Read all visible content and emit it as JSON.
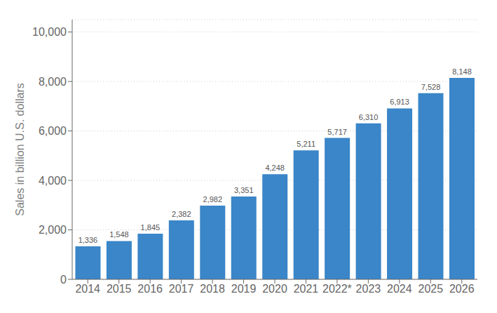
{
  "chart_data": {
    "type": "bar",
    "categories": [
      "2014",
      "2015",
      "2016",
      "2017",
      "2018",
      "2019",
      "2020",
      "2021",
      "2022*",
      "2023",
      "2024",
      "2025",
      "2026"
    ],
    "values": [
      1336,
      1548,
      1845,
      2382,
      2982,
      3351,
      4248,
      5211,
      5717,
      6310,
      6913,
      7528,
      8148
    ],
    "value_labels": [
      "1,336",
      "1,548",
      "1,845",
      "2,382",
      "2,982",
      "3,351",
      "4,248",
      "5,211",
      "5,717",
      "6,310",
      "6,913",
      "7,528",
      "8,148"
    ],
    "data_labels": true,
    "color": "#3a86c8",
    "ylabel": "Sales in billion U.S. dollars",
    "ylim": [
      0,
      10500
    ],
    "yticks": [
      0,
      {
        "value": 2000,
        "label": "2,000"
      },
      {
        "value": 4000,
        "label": "4,000"
      },
      {
        "value": 6000,
        "label": "6,000"
      },
      {
        "value": 8000,
        "label": "8,000"
      },
      {
        "value": 10000,
        "label": "10,000"
      }
    ],
    "grid": true
  }
}
